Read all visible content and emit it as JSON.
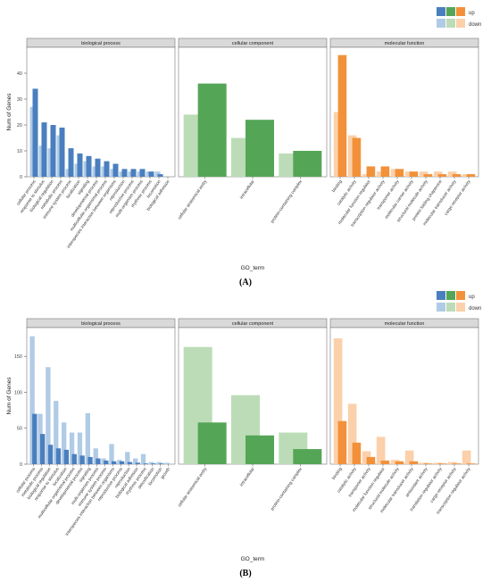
{
  "panels": [
    {
      "caption": "(A)",
      "ylabel": "Num of Genes",
      "xlabel": "GO_term",
      "legend": {
        "up_label": "up",
        "down_label": "down",
        "placement": "top-right"
      },
      "yticks": [
        0,
        10,
        20,
        30,
        40
      ],
      "ymax": 50
    },
    {
      "caption": "(B)",
      "ylabel": "Num of Genes",
      "xlabel": "GO_term",
      "legend": {
        "up_label": "up",
        "down_label": "down",
        "placement": "top-right"
      },
      "yticks": [
        0,
        50,
        100,
        150
      ],
      "ymax": 190
    }
  ],
  "colors": {
    "bp_up": "#4a7fbf",
    "bp_down": "#b0cbe5",
    "cc_up": "#55a557",
    "cc_down": "#bcdcb7",
    "mf_up": "#f2913a",
    "mf_down": "#fbd0aa",
    "strip_bg": "#d9d9d9",
    "panel_border": "#777777"
  },
  "chart_data": [
    {
      "type": "bar",
      "title": "(A)",
      "xlabel": "GO_term",
      "ylabel": "Num of Genes",
      "ylim": [
        0,
        50
      ],
      "legend": "top-right",
      "facets": [
        {
          "name": "biological process",
          "categories": [
            "cellular process",
            "response to stimulus",
            "biological regulation",
            "metabolic process",
            "immune system process",
            "localization",
            "signaling",
            "developmental process",
            "multicellular organismal process",
            "interspecies interaction between organisms",
            "reproduction",
            "reproductive process",
            "multi-organism process",
            "rhythmic process",
            "locomotion",
            "biological adhesion"
          ],
          "series": [
            {
              "name": "up",
              "values": [
                34,
                21,
                20,
                19,
                11,
                9,
                8,
                7,
                6,
                5,
                3,
                3,
                3,
                2,
                1,
                0
              ]
            },
            {
              "name": "down",
              "values": [
                27,
                12,
                11,
                16,
                3,
                5,
                6,
                4,
                4,
                3,
                2,
                2,
                2,
                2,
                2,
                0
              ]
            }
          ]
        },
        {
          "name": "cellular component",
          "categories": [
            "cellular anatomical entity",
            "intracellular",
            "protein-containing complex"
          ],
          "series": [
            {
              "name": "up",
              "values": [
                36,
                22,
                10
              ]
            },
            {
              "name": "down",
              "values": [
                24,
                15,
                9
              ]
            }
          ]
        },
        {
          "name": "molecular function",
          "categories": [
            "binding",
            "catalytic activity",
            "molecular function regulator",
            "transcription regulator activity",
            "transporter activity",
            "molecular carrier activity",
            "structural molecule activity",
            "protein folding chaperone",
            "molecular transducer activity",
            "cargo receptor activity"
          ],
          "series": [
            {
              "name": "up",
              "values": [
                47,
                15,
                4,
                4,
                3,
                2,
                1,
                1,
                1,
                1
              ]
            },
            {
              "name": "down",
              "values": [
                25,
                16,
                1,
                2,
                3,
                2,
                2,
                2,
                2,
                1
              ]
            }
          ]
        }
      ]
    },
    {
      "type": "bar",
      "title": "(B)",
      "xlabel": "GO_term",
      "ylabel": "Num of Genes",
      "ylim": [
        0,
        190
      ],
      "legend": "top-right",
      "facets": [
        {
          "name": "biological process",
          "categories": [
            "cellular process",
            "metabolic process",
            "biological regulation",
            "response to stimulus",
            "localization",
            "multicellular organismal process",
            "developmental process",
            "signaling",
            "multi-organism process",
            "immune system process",
            "interspecies interaction between organisms",
            "reproductive process",
            "reproduction",
            "biological adhesion",
            "rhythmic process",
            "detoxification",
            "locomotion",
            "growth"
          ],
          "series": [
            {
              "name": "up",
              "values": [
                70,
                42,
                27,
                22,
                20,
                14,
                12,
                10,
                8,
                5,
                4,
                4,
                3,
                2,
                1,
                1,
                1,
                0
              ]
            },
            {
              "name": "down",
              "values": [
                178,
                70,
                135,
                88,
                58,
                44,
                44,
                71,
                22,
                8,
                28,
                6,
                17,
                8,
                14,
                3,
                3,
                2
              ]
            }
          ]
        },
        {
          "name": "cellular component",
          "categories": [
            "cellular anatomical entity",
            "intracellular",
            "protein-containing complex"
          ],
          "series": [
            {
              "name": "up",
              "values": [
                58,
                40,
                21
              ]
            },
            {
              "name": "down",
              "values": [
                163,
                96,
                44
              ]
            }
          ]
        },
        {
          "name": "molecular function",
          "categories": [
            "binding",
            "catalytic activity",
            "transporter activity",
            "molecular function regulator",
            "structural molecule activity",
            "molecular transducer activity",
            "antioxidant activity",
            "translation regulator activity",
            "cargo receptor activity",
            "transcription regulator activity"
          ],
          "series": [
            {
              "name": "up",
              "values": [
                60,
                30,
                10,
                5,
                4,
                4,
                1,
                1,
                1,
                1
              ]
            },
            {
              "name": "down",
              "values": [
                175,
                84,
                18,
                38,
                6,
                19,
                2,
                2,
                3,
                19
              ]
            }
          ]
        }
      ]
    }
  ]
}
